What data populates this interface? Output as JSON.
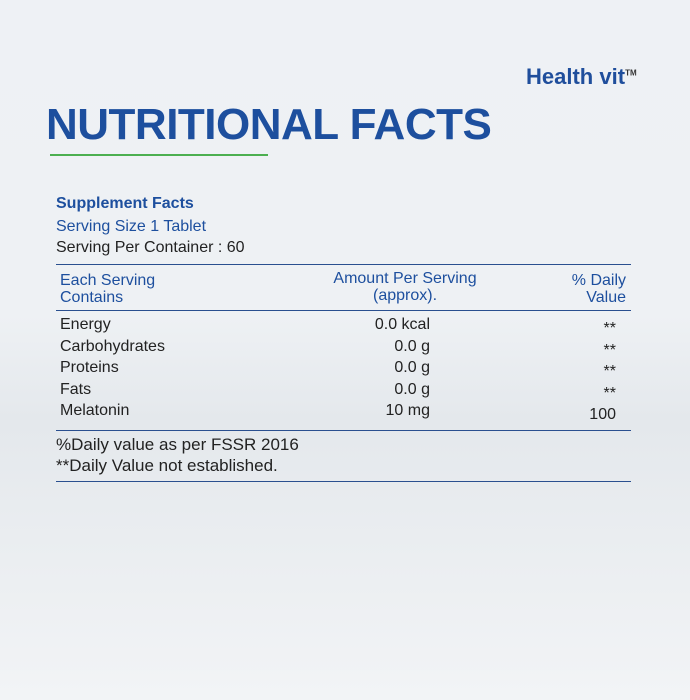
{
  "brand": {
    "name": "Health",
    "suffix": "vit",
    "mark": "TM"
  },
  "header": {
    "title": "NUTRITIONAL FACTS"
  },
  "facts": {
    "heading": "Supplement Facts",
    "serving_size": "Serving Size 1 Tablet",
    "servings": "Serving Per Container : 60"
  },
  "table": {
    "columns": [
      "Each Serving Contains",
      "Amount Per Serving (approx).",
      "% Daily Value"
    ],
    "rows": [
      [
        "Energy",
        "0.0 kcal",
        "**"
      ],
      [
        "Carbohydrates",
        "0.0 g",
        "**"
      ],
      [
        "Proteins",
        "0.0 g",
        "**"
      ],
      [
        "Fats",
        "0.0 g",
        "**"
      ],
      [
        "Melatonin",
        "10 mg",
        "100"
      ]
    ]
  },
  "notes": [
    "%Daily value as per FSSR 2016",
    "**Daily Value not established."
  ]
}
